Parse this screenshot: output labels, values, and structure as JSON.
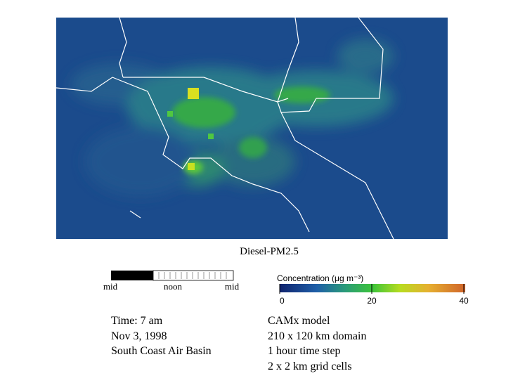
{
  "map": {
    "title": "Diesel-PM2.5"
  },
  "timeline": {
    "labels": [
      "mid",
      "noon",
      "mid"
    ]
  },
  "colorbar": {
    "title": "Concentration (μg m⁻³)",
    "range": [
      0,
      40
    ],
    "ticks": [
      0,
      20,
      40
    ]
  },
  "info": {
    "lines": [
      "Time: 7 am",
      "Nov 3, 1998",
      "South Coast Air Basin"
    ]
  },
  "model": {
    "lines": [
      "CAMx model",
      "210 x 120 km domain",
      "1 hour time step",
      "2 x 2 km grid cells"
    ]
  }
}
